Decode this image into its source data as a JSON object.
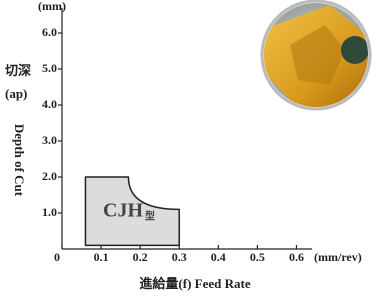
{
  "chart_data": {
    "type": "region",
    "y_unit": "(mm)",
    "x_unit": "(mm/rev)",
    "y_title_cn": "切深",
    "y_title_abbr": "(ap)",
    "y_title": "Depth of Cut",
    "x_title": "進給量(f) Feed Rate",
    "region_label": {
      "main": "CJH",
      "sub": "型"
    },
    "x": [
      0.06,
      0.17,
      0.3,
      0.3,
      0.06
    ],
    "y": [
      2.0,
      2.0,
      1.1,
      0.1,
      0.1
    ],
    "color": "#dcdcdc",
    "xlim": [
      0,
      0.65
    ],
    "ylim": [
      0,
      6.5
    ],
    "xticks": [
      0,
      0.1,
      0.2,
      0.3,
      0.4,
      0.5,
      0.6
    ],
    "yticks": [
      {
        "value": 1,
        "label": "1.0"
      },
      {
        "value": 2,
        "label": "2.0"
      },
      {
        "value": 3,
        "label": "3.0"
      },
      {
        "value": 4,
        "label": "4.0"
      },
      {
        "value": 5,
        "label": "5.0"
      },
      {
        "value": 6,
        "label": "6.0"
      }
    ]
  }
}
